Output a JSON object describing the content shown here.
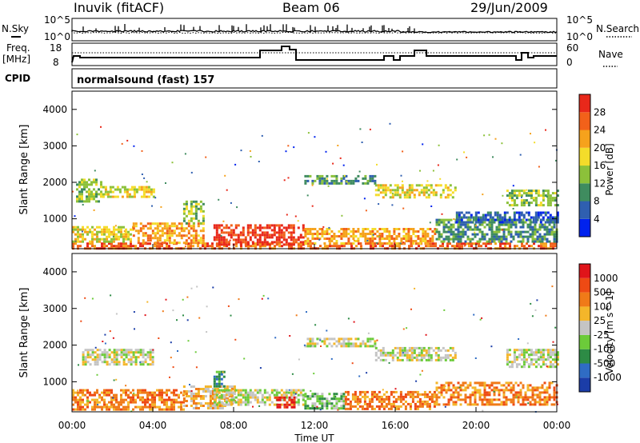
{
  "header": {
    "station": "Inuvik (fitACF)",
    "beam": "Beam 06",
    "date": "29/Jun/2009"
  },
  "noise_panel": {
    "left_label": "N.Sky",
    "right_label": "N.Search",
    "left_ticks": [
      "10^5",
      "10^0"
    ],
    "right_ticks": [
      "10^5",
      "10^0"
    ]
  },
  "freq_panel": {
    "left_label_1": "Freq.",
    "left_label_2": "[MHz]",
    "left_ticks": [
      "18",
      "8"
    ],
    "right_label": "Nave",
    "right_ticks": [
      "60",
      "0"
    ]
  },
  "cpid": {
    "label": "CPID",
    "value": "normalsound (fast) 157"
  },
  "x_axis": {
    "label": "Time UT",
    "ticks": [
      "00:00",
      "04:00",
      "08:00",
      "12:00",
      "16:00",
      "20:00",
      "00:00"
    ]
  },
  "chart_data": [
    {
      "type": "heatmap",
      "name": "power",
      "ylabel": "Slant Range [km]",
      "yticks": [
        "1000",
        "2000",
        "3000",
        "4000"
      ],
      "ylim": [
        180,
        4500
      ],
      "xlim": [
        "00:00",
        "24:00"
      ],
      "colorbar": {
        "label": "Power [dB]",
        "ticks": [
          "4",
          "8",
          "12",
          "16",
          "20",
          "24",
          "28"
        ],
        "colors": [
          "#0022ee",
          "#2f5fb0",
          "#3f8c5f",
          "#8cc13a",
          "#f4dc2a",
          "#f6a21c",
          "#f2611a",
          "#e8281a"
        ]
      },
      "regions": [
        {
          "t": [
            0.0,
            24.0
          ],
          "r": [
            200,
            350
          ],
          "level": 6
        },
        {
          "t": [
            0.0,
            3.0
          ],
          "r": [
            350,
            800
          ],
          "level": 4
        },
        {
          "t": [
            3.0,
            6.5
          ],
          "r": [
            350,
            900
          ],
          "level": 5
        },
        {
          "t": [
            7.0,
            11.5
          ],
          "r": [
            300,
            850
          ],
          "level": 7
        },
        {
          "t": [
            11.5,
            18.0
          ],
          "r": [
            350,
            750
          ],
          "level": 5
        },
        {
          "t": [
            18.0,
            24.0
          ],
          "r": [
            350,
            1000
          ],
          "level": 2
        },
        {
          "t": [
            0.2,
            1.5
          ],
          "r": [
            1500,
            2100
          ],
          "level": 3
        },
        {
          "t": [
            1.5,
            4.0
          ],
          "r": [
            1600,
            1900
          ],
          "level": 4
        },
        {
          "t": [
            5.5,
            6.5
          ],
          "r": [
            900,
            1500
          ],
          "level": 3
        },
        {
          "t": [
            11.5,
            15.0
          ],
          "r": [
            2000,
            2200
          ],
          "level": 2
        },
        {
          "t": [
            15.0,
            19.0
          ],
          "r": [
            1600,
            1950
          ],
          "level": 4
        },
        {
          "t": [
            21.5,
            24.0
          ],
          "r": [
            1400,
            1800
          ],
          "level": 3
        },
        {
          "t": [
            19.0,
            24.0
          ],
          "r": [
            900,
            1200
          ],
          "level": 1
        }
      ]
    },
    {
      "type": "heatmap",
      "name": "velocity",
      "ylabel": "Slant Range [km]",
      "yticks": [
        "1000",
        "2000",
        "3000",
        "4000"
      ],
      "ylim": [
        180,
        4500
      ],
      "xlim": [
        "00:00",
        "24:00"
      ],
      "colorbar": {
        "label": "Velocity [m s^-1]",
        "ticks": [
          "1000",
          "500",
          "100",
          "25",
          "-25",
          "-100",
          "-500",
          "-1000"
        ],
        "colors": [
          "#1b3da8",
          "#2f6cc4",
          "#2d8b45",
          "#6ccb3a",
          "#c4c4c4",
          "#f4b62a",
          "#f07a18",
          "#ee4a14",
          "#e0141a"
        ]
      },
      "regions": [
        {
          "t": [
            0.0,
            5.5
          ],
          "r": [
            250,
            800
          ],
          "level": 6
        },
        {
          "t": [
            5.5,
            8.0
          ],
          "r": [
            250,
            900
          ],
          "level": 5
        },
        {
          "t": [
            7.0,
            11.5
          ],
          "r": [
            400,
            800
          ],
          "level": 4
        },
        {
          "t": [
            11.5,
            13.5
          ],
          "r": [
            250,
            700
          ],
          "level": 3
        },
        {
          "t": [
            13.5,
            18.0
          ],
          "r": [
            250,
            750
          ],
          "level": 6
        },
        {
          "t": [
            18.0,
            24.0
          ],
          "r": [
            400,
            1000
          ],
          "level": 6
        },
        {
          "t": [
            0.5,
            4.0
          ],
          "r": [
            1500,
            1900
          ],
          "level": 4
        },
        {
          "t": [
            11.5,
            15.0
          ],
          "r": [
            2000,
            2200
          ],
          "level": 4
        },
        {
          "t": [
            15.0,
            19.0
          ],
          "r": [
            1600,
            1950
          ],
          "level": 4
        },
        {
          "t": [
            21.5,
            24.0
          ],
          "r": [
            1400,
            1900
          ],
          "level": 4
        },
        {
          "t": [
            7.0,
            7.5
          ],
          "r": [
            900,
            1300
          ],
          "level": 2
        },
        {
          "t": [
            10.0,
            11.0
          ],
          "r": [
            300,
            600
          ],
          "level": 8
        }
      ]
    }
  ]
}
